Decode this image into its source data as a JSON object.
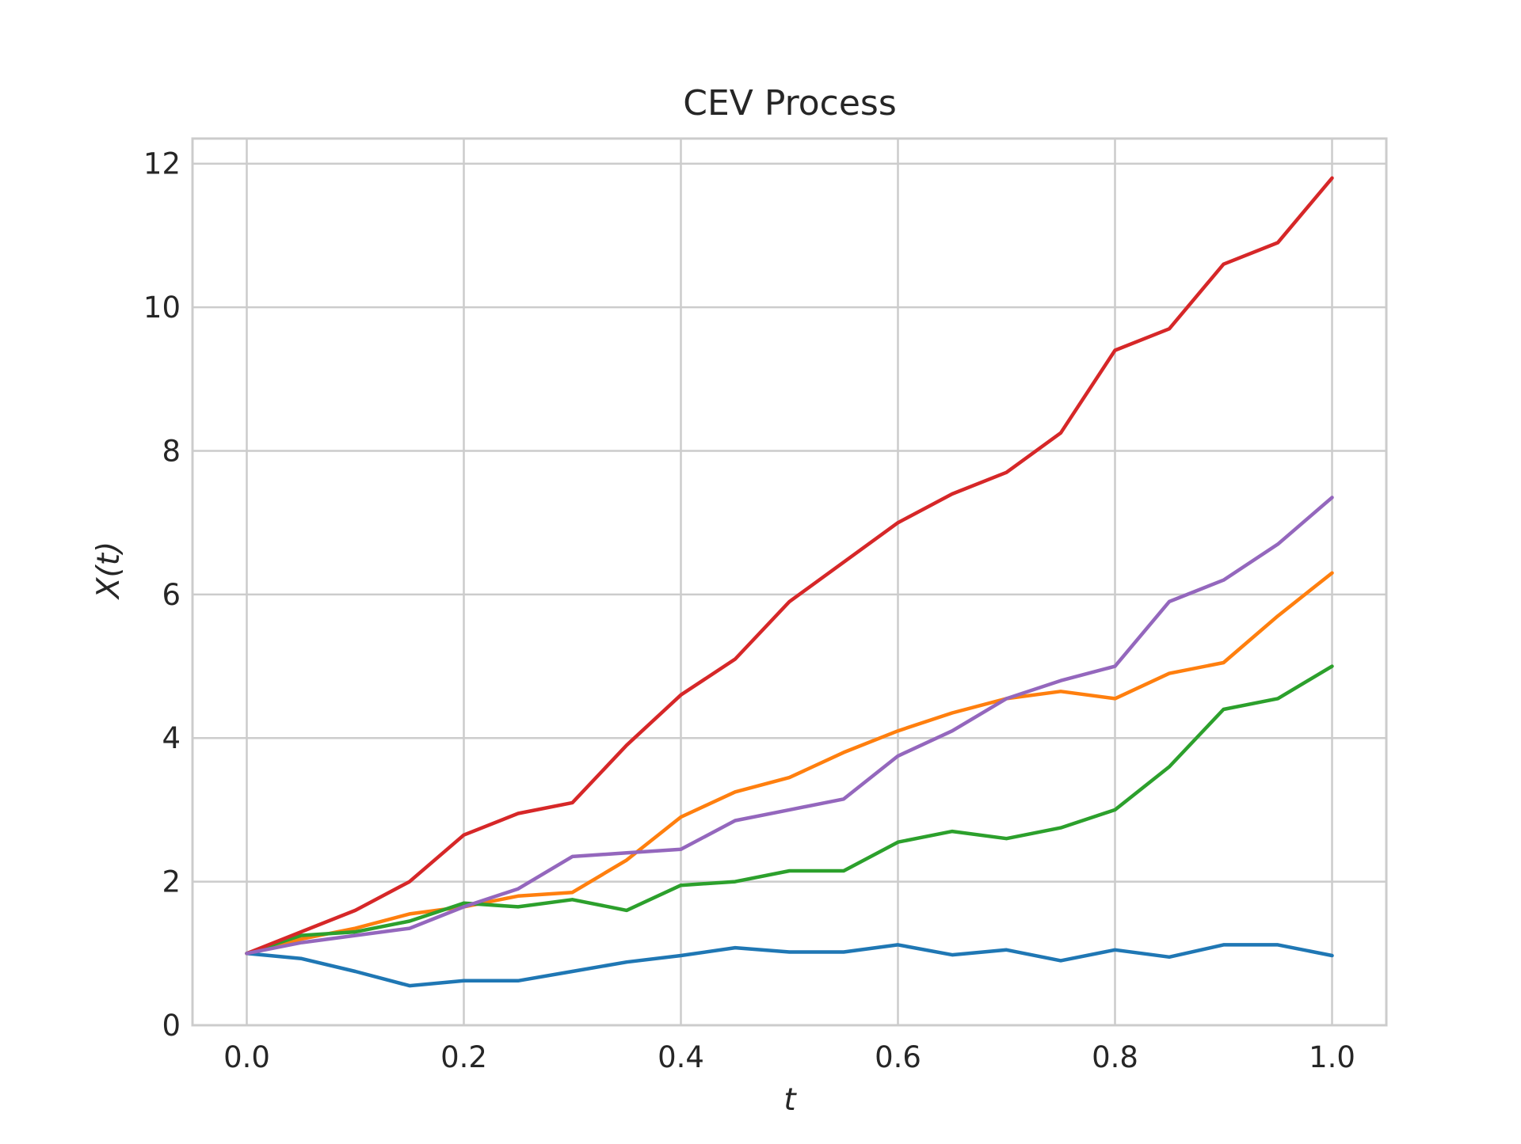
{
  "chart_data": {
    "type": "line",
    "title": "CEV Process",
    "xlabel": "t",
    "ylabel": "X(t)",
    "xlim": [
      -0.05,
      1.05
    ],
    "ylim": [
      0,
      12.35
    ],
    "xticks": [
      0.0,
      0.2,
      0.4,
      0.6,
      0.8,
      1.0
    ],
    "xtick_labels": [
      "0.0",
      "0.2",
      "0.4",
      "0.6",
      "0.8",
      "1.0"
    ],
    "yticks": [
      0,
      2,
      4,
      6,
      8,
      10,
      12
    ],
    "ytick_labels": [
      "0",
      "2",
      "4",
      "6",
      "8",
      "10",
      "12"
    ],
    "grid": true,
    "legend": "none",
    "x": [
      0.0,
      0.05,
      0.1,
      0.15,
      0.2,
      0.25,
      0.3,
      0.35,
      0.4,
      0.45,
      0.5,
      0.55,
      0.6,
      0.65,
      0.7,
      0.75,
      0.8,
      0.85,
      0.9,
      0.95,
      1.0
    ],
    "series": [
      {
        "color": "#1f77b4",
        "values": [
          1.0,
          0.93,
          0.75,
          0.55,
          0.62,
          0.62,
          0.75,
          0.88,
          0.97,
          1.08,
          1.02,
          1.02,
          1.12,
          0.98,
          1.05,
          0.9,
          1.05,
          0.95,
          1.12,
          1.12,
          0.97
        ]
      },
      {
        "color": "#ff7f0e",
        "values": [
          1.0,
          1.2,
          1.35,
          1.55,
          1.65,
          1.8,
          1.85,
          2.3,
          2.9,
          3.25,
          3.45,
          3.8,
          4.1,
          4.35,
          4.55,
          4.65,
          4.55,
          4.9,
          5.05,
          5.7,
          6.3
        ]
      },
      {
        "color": "#2ca02c",
        "values": [
          1.0,
          1.25,
          1.3,
          1.45,
          1.7,
          1.65,
          1.75,
          1.6,
          1.95,
          2.0,
          2.15,
          2.15,
          2.55,
          2.7,
          2.6,
          2.75,
          3.0,
          3.6,
          4.4,
          4.55,
          5.0
        ]
      },
      {
        "color": "#d62728",
        "values": [
          1.0,
          1.3,
          1.6,
          2.0,
          2.65,
          2.95,
          3.1,
          3.9,
          4.6,
          5.1,
          5.9,
          6.45,
          7.0,
          7.4,
          7.7,
          8.25,
          9.4,
          9.7,
          10.6,
          10.9,
          11.8
        ]
      },
      {
        "color": "#9467bd",
        "values": [
          1.0,
          1.15,
          1.25,
          1.35,
          1.65,
          1.9,
          2.35,
          2.4,
          2.45,
          2.85,
          3.0,
          3.15,
          3.75,
          4.1,
          4.55,
          4.8,
          5.0,
          5.9,
          6.2,
          6.7,
          7.35
        ]
      }
    ]
  }
}
